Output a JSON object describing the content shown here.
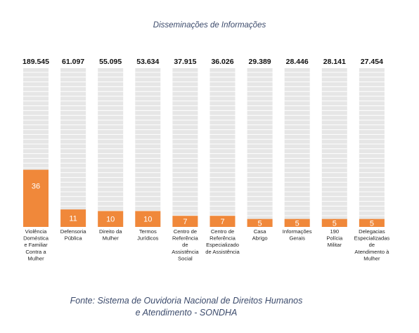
{
  "chart_data": {
    "type": "bar",
    "title": "Disseminações de Informações",
    "categories": [
      [
        "Violência",
        "Doméstica",
        "e Familiar",
        "Contra a",
        "Mulher"
      ],
      [
        "Defensoria",
        "Pública"
      ],
      [
        "Direito da",
        "Mulher"
      ],
      [
        "Termos",
        "Jurídicos"
      ],
      [
        "Centro de",
        "Referência",
        "de",
        "Assistência",
        "Social"
      ],
      [
        "Centro de",
        "Referência",
        "Especializado",
        "de Assistência"
      ],
      [
        "Casa",
        "Abrigo"
      ],
      [
        "Informações",
        "Gerais"
      ],
      [
        "190",
        "Polícia",
        "Militar"
      ],
      [
        "Delegacias",
        "Especializadas",
        "de",
        "Atendimento à",
        "Mulher"
      ]
    ],
    "totals": [
      "189.545",
      "61.097",
      "55.095",
      "53.634",
      "37.915",
      "36.026",
      "29.389",
      "28.446",
      "28.141",
      "27.454"
    ],
    "values": [
      36,
      11,
      10,
      10,
      7,
      7,
      5,
      5,
      5,
      5
    ],
    "ylim": [
      0,
      100
    ],
    "colors": {
      "bar": "#f0883a",
      "track": "#e6e6e6",
      "stripe": "#ffffff",
      "value_label": "#ffffff"
    }
  },
  "source_lines": [
    "Fonte: Sistema de Ouvidoria Nacional de Direitos Humanos",
    "e Atendimento - SONDHA"
  ]
}
